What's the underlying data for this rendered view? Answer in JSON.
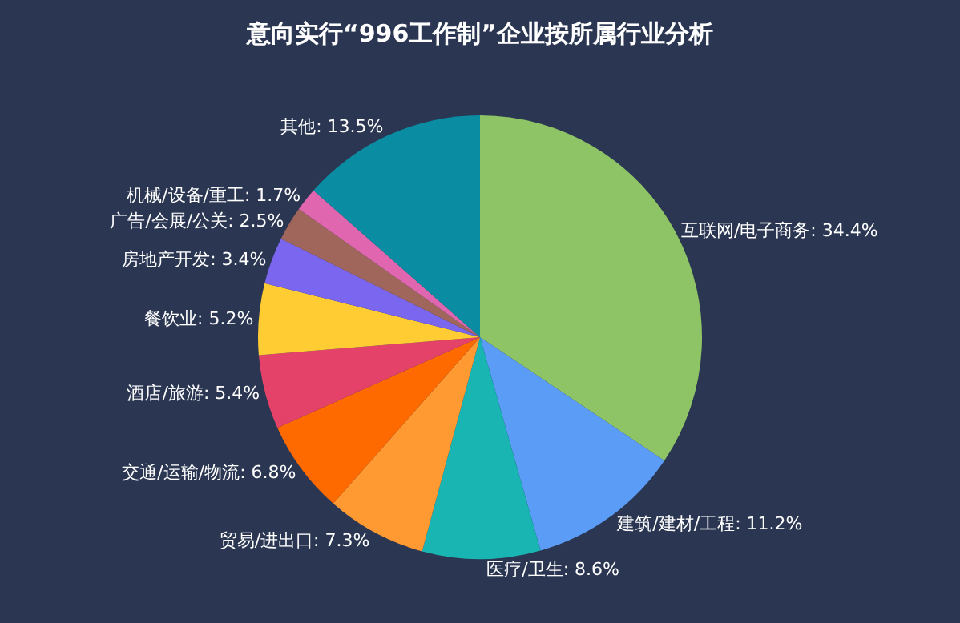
{
  "chart_data": {
    "type": "pie",
    "title": "意向实行“996工作制”企业按所属行业分析",
    "categories": [
      "互联网/电子商务",
      "建筑/建材/工程",
      "医疗/卫生",
      "贸易/进出口",
      "交通/运输/物流",
      "酒店/旅游",
      "餐饮业",
      "房地产开发",
      "广告/会展/公关",
      "机械/设备/重工",
      "其他"
    ],
    "values": [
      34.4,
      11.2,
      8.6,
      7.3,
      6.8,
      5.4,
      5.2,
      3.4,
      2.5,
      1.7,
      13.5
    ],
    "value_labels": [
      "34.4%",
      "11.2%",
      "8.6%",
      "7.3%",
      "6.8%",
      "5.4%",
      "5.2%",
      "3.4%",
      "2.5%",
      "1.7%",
      "13.5%"
    ],
    "colors": [
      "#8fc466",
      "#5b9cf6",
      "#19b5b3",
      "#ff9a33",
      "#ff6a00",
      "#e5426a",
      "#ffcc33",
      "#7b66f0",
      "#a0665c",
      "#e066b0",
      "#0a8ca3"
    ]
  }
}
